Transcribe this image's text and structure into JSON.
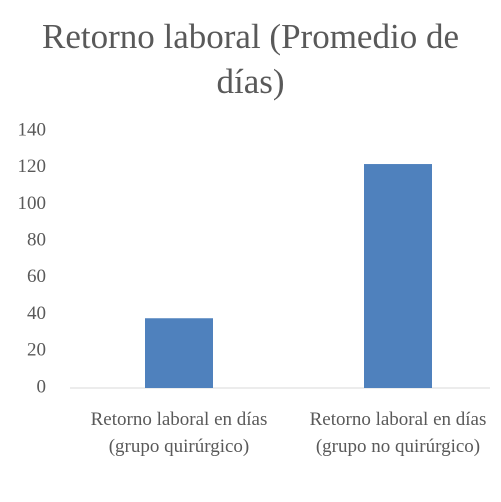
{
  "chart_data": {
    "type": "bar",
    "title": "Retorno laboral (Promedio de días)",
    "categories": [
      "Retorno laboral en días (grupo quirúrgico)",
      "Retorno laboral en días (grupo no quirúrgico)"
    ],
    "values": [
      38,
      122
    ],
    "color": "#4f81bd",
    "ylim": [
      0,
      140
    ],
    "yticks": [
      0,
      20,
      40,
      60,
      80,
      100,
      120,
      140
    ],
    "grid": false
  }
}
